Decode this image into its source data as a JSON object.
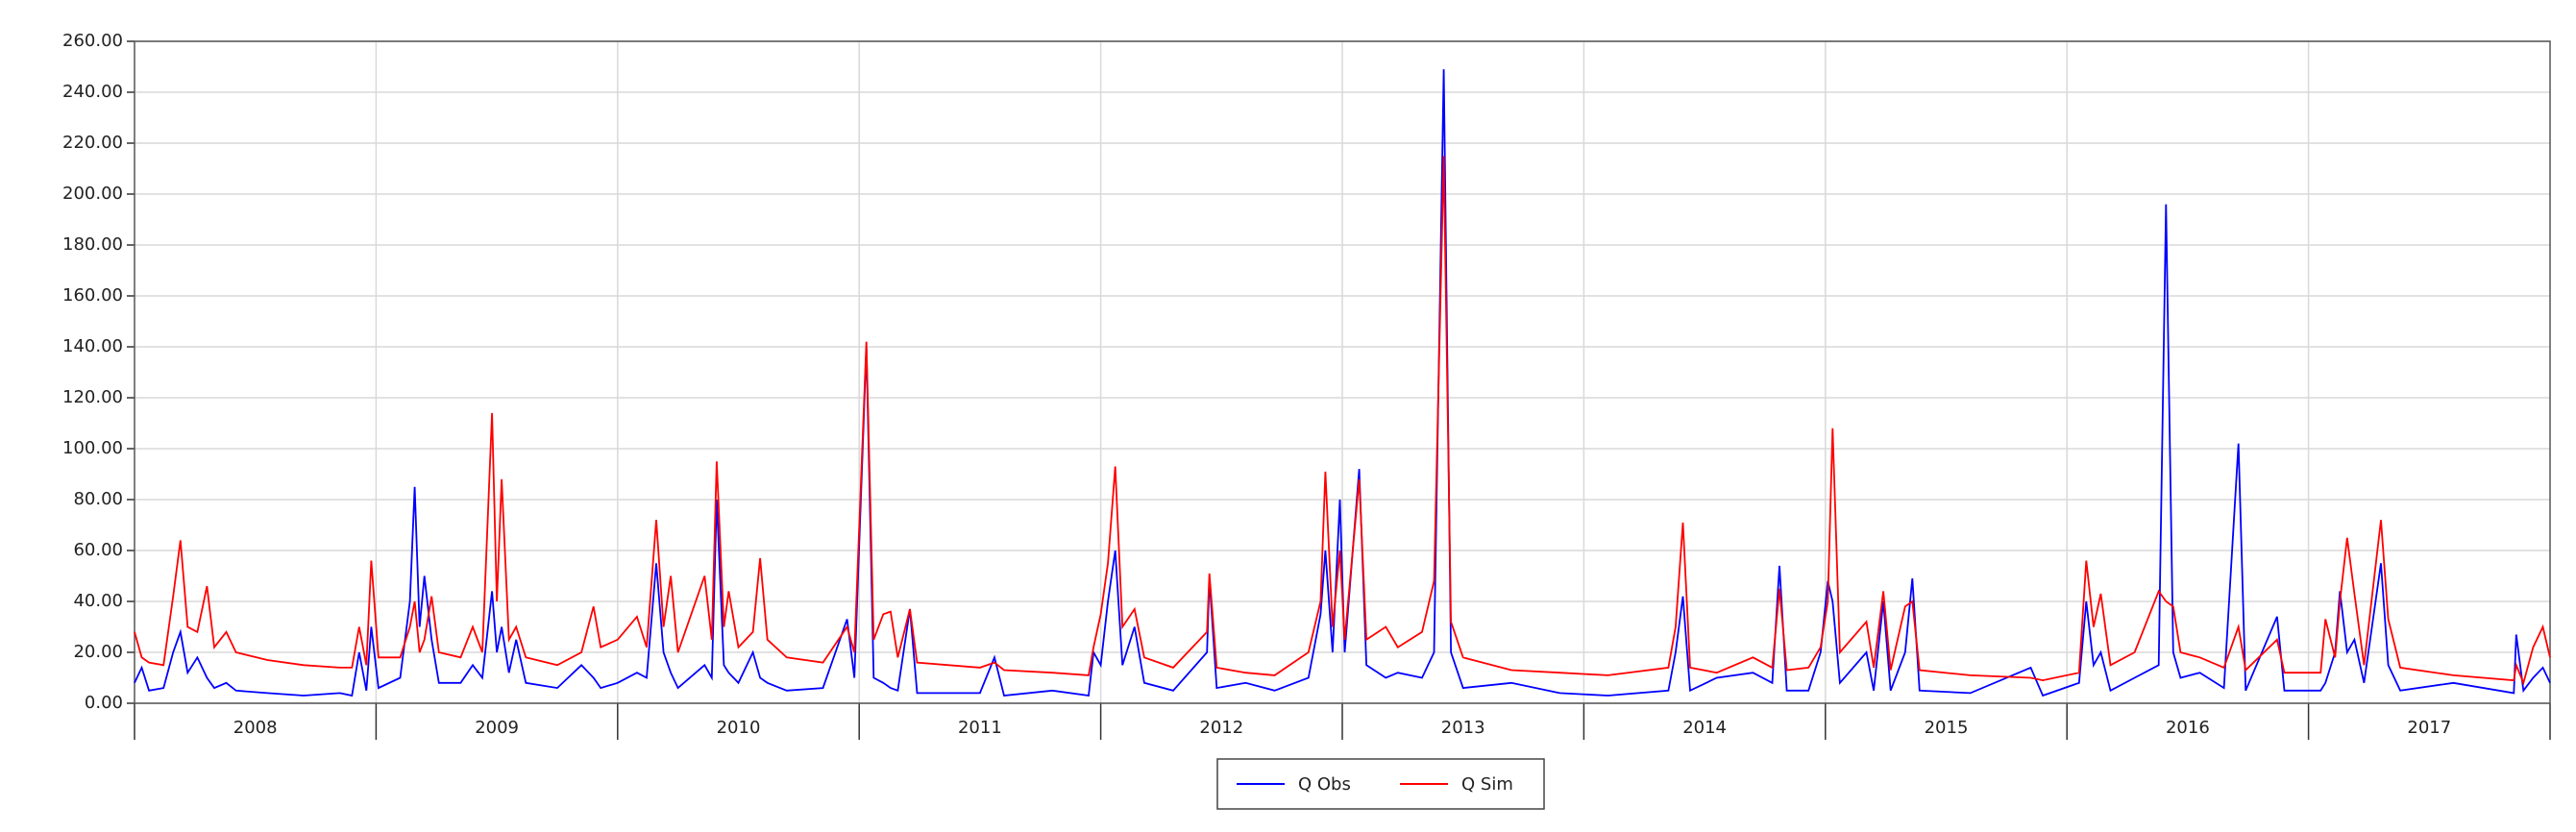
{
  "chart_data": {
    "type": "line",
    "categories": [
      "2008",
      "2009",
      "2010",
      "2011",
      "2012",
      "2013",
      "2014",
      "2015",
      "2016",
      "2017"
    ],
    "x": [
      2008.0,
      2008.03,
      2008.06,
      2008.12,
      2008.16,
      2008.19,
      2008.22,
      2008.26,
      2008.3,
      2008.33,
      2008.38,
      2008.42,
      2008.55,
      2008.7,
      2008.85,
      2008.9,
      2008.93,
      2008.96,
      2008.98,
      2009.01,
      2009.1,
      2009.14,
      2009.16,
      2009.18,
      2009.2,
      2009.23,
      2009.26,
      2009.35,
      2009.4,
      2009.44,
      2009.48,
      2009.5,
      2009.52,
      2009.55,
      2009.58,
      2009.62,
      2009.75,
      2009.85,
      2009.9,
      2009.93,
      2010.0,
      2010.08,
      2010.12,
      2010.16,
      2010.19,
      2010.22,
      2010.25,
      2010.36,
      2010.39,
      2010.41,
      2010.44,
      2010.46,
      2010.5,
      2010.56,
      2010.59,
      2010.62,
      2010.7,
      2010.85,
      2010.95,
      2010.98,
      2011.03,
      2011.06,
      2011.1,
      2011.13,
      2011.16,
      2011.21,
      2011.24,
      2011.5,
      2011.56,
      2011.6,
      2011.8,
      2011.95,
      2011.97,
      2012.0,
      2012.03,
      2012.06,
      2012.09,
      2012.14,
      2012.18,
      2012.3,
      2012.44,
      2012.45,
      2012.48,
      2012.6,
      2012.72,
      2012.86,
      2012.91,
      2012.93,
      2012.96,
      2012.99,
      2013.01,
      2013.07,
      2013.1,
      2013.18,
      2013.23,
      2013.33,
      2013.38,
      2013.42,
      2013.45,
      2013.5,
      2013.7,
      2013.9,
      2014.1,
      2014.35,
      2014.38,
      2014.41,
      2014.44,
      2014.55,
      2014.7,
      2014.78,
      2014.81,
      2014.84,
      2014.93,
      2014.98,
      2015.01,
      2015.03,
      2015.06,
      2015.17,
      2015.2,
      2015.24,
      2015.27,
      2015.33,
      2015.36,
      2015.39,
      2015.6,
      2015.85,
      2015.9,
      2016.05,
      2016.08,
      2016.11,
      2016.14,
      2016.18,
      2016.28,
      2016.38,
      2016.41,
      2016.44,
      2016.47,
      2016.55,
      2016.65,
      2016.71,
      2016.74,
      2016.87,
      2016.9,
      2017.05,
      2017.07,
      2017.11,
      2017.13,
      2017.16,
      2017.19,
      2017.23,
      2017.3,
      2017.33,
      2017.38,
      2017.6,
      2017.85,
      2017.86,
      2017.89,
      2017.93,
      2017.97,
      2018.0
    ],
    "series": [
      {
        "name": "Q Obs",
        "color": "#0000ff",
        "values": [
          8,
          14,
          5,
          6,
          20,
          28,
          12,
          18,
          10,
          6,
          8,
          5,
          4,
          3,
          4,
          3,
          20,
          5,
          30,
          6,
          10,
          40,
          85,
          30,
          50,
          25,
          8,
          8,
          15,
          10,
          44,
          20,
          30,
          12,
          25,
          8,
          6,
          15,
          10,
          6,
          8,
          12,
          10,
          55,
          20,
          12,
          6,
          15,
          10,
          80,
          15,
          12,
          8,
          20,
          10,
          8,
          5,
          6,
          33,
          10,
          140,
          10,
          8,
          6,
          5,
          37,
          4,
          4,
          18,
          3,
          5,
          3,
          20,
          15,
          40,
          60,
          15,
          30,
          8,
          5,
          20,
          49,
          6,
          8,
          5,
          10,
          35,
          60,
          20,
          80,
          20,
          92,
          15,
          10,
          12,
          10,
          20,
          249,
          20,
          6,
          8,
          4,
          3,
          5,
          20,
          42,
          5,
          10,
          12,
          8,
          54,
          5,
          5,
          20,
          48,
          40,
          8,
          20,
          5,
          40,
          5,
          20,
          49,
          5,
          4,
          14,
          3,
          8,
          40,
          15,
          20,
          5,
          10,
          15,
          196,
          20,
          10,
          12,
          6,
          102,
          5,
          34,
          5,
          5,
          8,
          20,
          44,
          20,
          25,
          8,
          55,
          15,
          5,
          8,
          4,
          27,
          5,
          10,
          14,
          8
        ]
      },
      {
        "name": "Q Sim",
        "color": "#ff0000",
        "values": [
          28,
          18,
          16,
          15,
          42,
          64,
          30,
          28,
          46,
          22,
          28,
          20,
          17,
          15,
          14,
          14,
          30,
          15,
          56,
          18,
          18,
          30,
          40,
          20,
          25,
          42,
          20,
          18,
          30,
          20,
          114,
          40,
          88,
          25,
          30,
          18,
          15,
          20,
          38,
          22,
          25,
          34,
          22,
          72,
          30,
          50,
          20,
          50,
          25,
          95,
          30,
          44,
          22,
          28,
          57,
          25,
          18,
          16,
          30,
          20,
          142,
          25,
          35,
          36,
          18,
          37,
          16,
          14,
          16,
          13,
          12,
          11,
          22,
          35,
          55,
          93,
          30,
          37,
          18,
          14,
          28,
          51,
          14,
          12,
          11,
          20,
          40,
          91,
          30,
          60,
          25,
          88,
          25,
          30,
          22,
          28,
          48,
          215,
          32,
          18,
          13,
          12,
          11,
          14,
          30,
          71,
          14,
          12,
          18,
          14,
          45,
          13,
          14,
          22,
          40,
          108,
          20,
          32,
          14,
          44,
          13,
          38,
          40,
          13,
          11,
          10,
          9,
          12,
          56,
          30,
          43,
          15,
          20,
          44,
          40,
          38,
          20,
          18,
          14,
          30,
          13,
          25,
          12,
          12,
          33,
          18,
          40,
          65,
          43,
          15,
          72,
          33,
          14,
          11,
          9,
          15,
          8,
          22,
          30,
          18
        ]
      }
    ],
    "xlim": [
      2008,
      2018
    ],
    "ylim": [
      0,
      260
    ],
    "yticks": [
      {
        "value": 0,
        "label": "0.00"
      },
      {
        "value": 20,
        "label": "20.00"
      },
      {
        "value": 40,
        "label": "40.00"
      },
      {
        "value": 60,
        "label": "60.00"
      },
      {
        "value": 80,
        "label": "80.00"
      },
      {
        "value": 100,
        "label": "100.00"
      },
      {
        "value": 120,
        "label": "120.00"
      },
      {
        "value": 140,
        "label": "140.00"
      },
      {
        "value": 160,
        "label": "160.00"
      },
      {
        "value": 180,
        "label": "180.00"
      },
      {
        "value": 200,
        "label": "200.00"
      },
      {
        "value": 220,
        "label": "220.00"
      },
      {
        "value": 240,
        "label": "240.00"
      },
      {
        "value": 260,
        "label": "260.00"
      }
    ],
    "grid": true
  }
}
